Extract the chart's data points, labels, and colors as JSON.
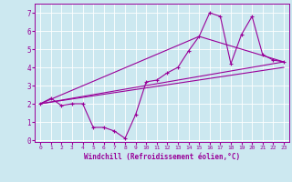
{
  "xlabel": "Windchill (Refroidissement éolien,°C)",
  "bg_color": "#cce8f0",
  "grid_color": "#ffffff",
  "line_color": "#990099",
  "xlim": [
    -0.5,
    23.5
  ],
  "ylim": [
    -0.1,
    7.5
  ],
  "xticks": [
    0,
    1,
    2,
    3,
    4,
    5,
    6,
    7,
    8,
    9,
    10,
    11,
    12,
    13,
    14,
    15,
    16,
    17,
    18,
    19,
    20,
    21,
    22,
    23
  ],
  "yticks": [
    0,
    1,
    2,
    3,
    4,
    5,
    6,
    7
  ],
  "series1_x": [
    0,
    1,
    2,
    3,
    4,
    5,
    6,
    7,
    8,
    9,
    10,
    11,
    12,
    13,
    14,
    15,
    16,
    17,
    18,
    19,
    20,
    21,
    22,
    23
  ],
  "series1_y": [
    2.0,
    2.3,
    1.9,
    2.0,
    2.0,
    0.7,
    0.7,
    0.5,
    0.1,
    1.4,
    3.2,
    3.3,
    3.7,
    4.0,
    4.9,
    5.7,
    7.0,
    6.8,
    4.2,
    5.8,
    6.8,
    4.7,
    4.4,
    4.3
  ],
  "series2_x": [
    0,
    23
  ],
  "series2_y": [
    2.0,
    4.3
  ],
  "series3_x": [
    0,
    15,
    23
  ],
  "series3_y": [
    2.0,
    5.7,
    4.3
  ],
  "series4_x": [
    0,
    23
  ],
  "series4_y": [
    2.0,
    4.0
  ],
  "marker_size": 2.5,
  "line_width": 0.8,
  "xlabel_fontsize": 5.5,
  "tick_fontsize_x": 4.5,
  "tick_fontsize_y": 5.5
}
